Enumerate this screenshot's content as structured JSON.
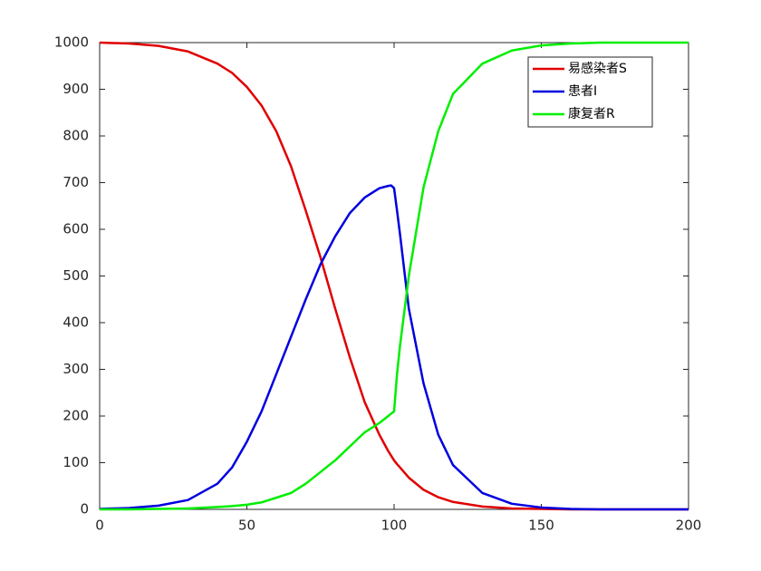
{
  "chart_data": {
    "type": "line",
    "x": [
      0,
      10,
      20,
      30,
      40,
      45,
      50,
      55,
      60,
      65,
      70,
      75,
      80,
      85,
      90,
      95,
      98,
      99,
      100,
      101,
      102,
      105,
      110,
      115,
      120,
      130,
      140,
      150,
      160,
      170,
      200
    ],
    "series": [
      {
        "name": "易感染者S",
        "color": "#e00000",
        "values": [
          1000,
          998,
          993,
          981,
          955,
          935,
          905,
          865,
          810,
          735,
          640,
          540,
          430,
          325,
          230,
          160,
          125,
          115,
          105,
          97,
          90,
          68,
          42,
          26,
          16,
          6,
          2,
          1,
          0,
          0,
          0
        ]
      },
      {
        "name": "患者I",
        "color": "#0000e0",
        "values": [
          1,
          3,
          8,
          20,
          55,
          90,
          145,
          210,
          290,
          370,
          450,
          525,
          585,
          635,
          668,
          688,
          693,
          694,
          688,
          640,
          590,
          430,
          270,
          160,
          95,
          35,
          12,
          4,
          1,
          0,
          0
        ]
      },
      {
        "name": "康复者R",
        "color": "#00ee00",
        "values": [
          0,
          0,
          1,
          2,
          5,
          7,
          10,
          15,
          25,
          35,
          55,
          80,
          105,
          135,
          165,
          185,
          200,
          205,
          210,
          290,
          350,
          500,
          690,
          810,
          890,
          955,
          983,
          994,
          998,
          1000,
          1000
        ]
      }
    ],
    "xlim": [
      0,
      200
    ],
    "xticks": [
      0,
      50,
      100,
      150,
      200
    ],
    "ylim": [
      0,
      1000
    ],
    "yticks": [
      0,
      100,
      200,
      300,
      400,
      500,
      600,
      700,
      800,
      900,
      1000
    ],
    "legend": "top-right"
  }
}
